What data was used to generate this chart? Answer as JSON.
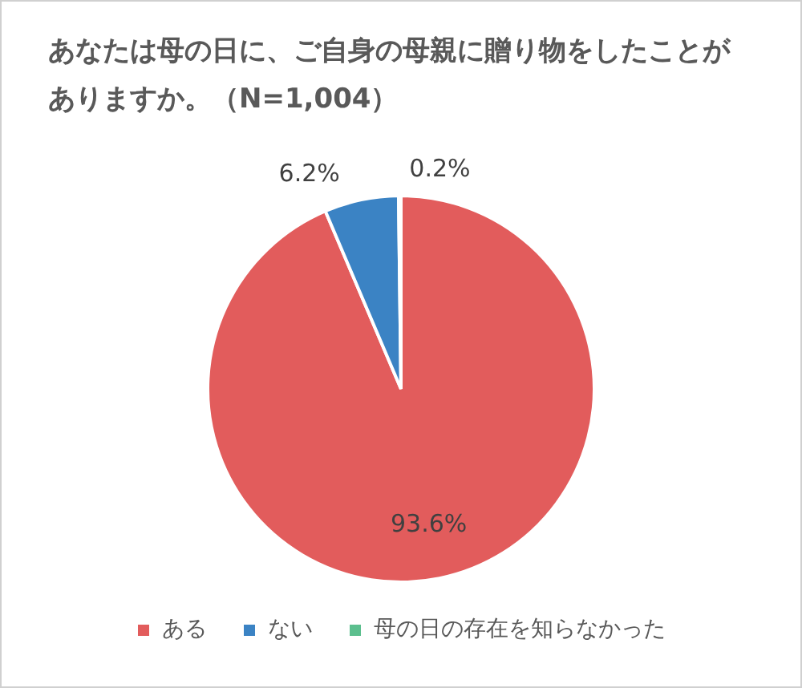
{
  "chart_data": {
    "type": "pie",
    "title": "あなたは母の日に、ご自身の母親に贈り物をしたことがありますか。（N=1,004）",
    "categories": [
      "ある",
      "ない",
      "母の日の存在を知らなかった"
    ],
    "values": [
      93.6,
      6.2,
      0.2
    ],
    "colors": [
      "#e25c5c",
      "#3b83c4",
      "#5cbf8e"
    ],
    "value_labels": [
      "93.6%",
      "6.2%",
      "0.2%"
    ],
    "legend": "bottom"
  }
}
